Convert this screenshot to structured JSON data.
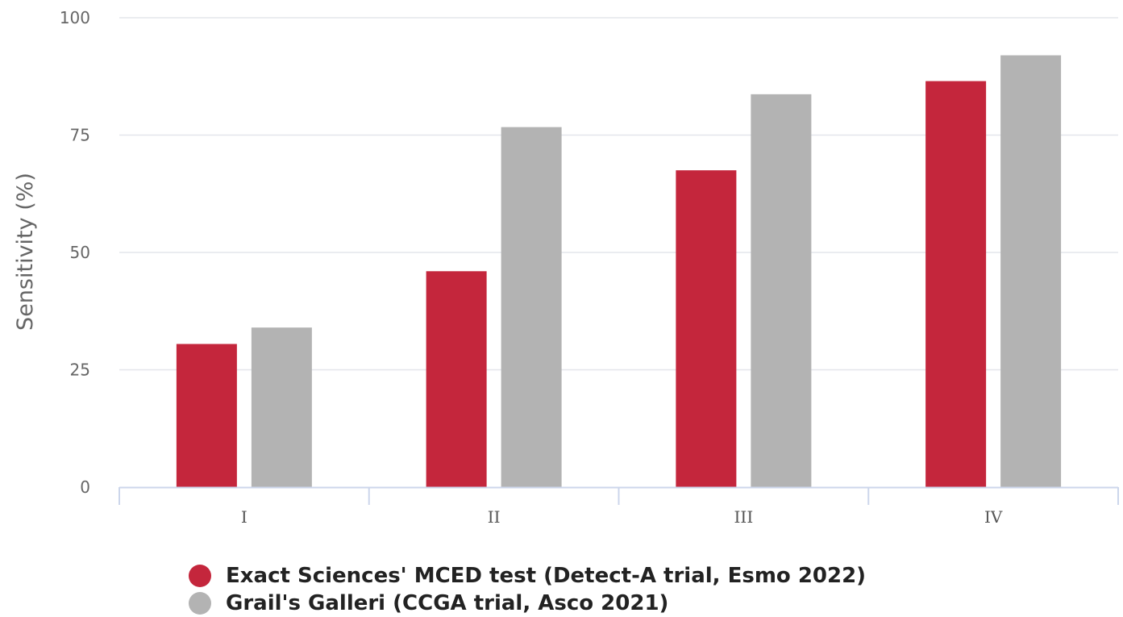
{
  "chart_data": {
    "type": "bar",
    "categories": [
      "I",
      "II",
      "III",
      "IV"
    ],
    "series": [
      {
        "name": "Exact Sciences' MCED test (Detect-A trial, Esmo 2022)",
        "values": [
          30.5,
          46,
          67.5,
          86.5
        ],
        "color": "#c4263c"
      },
      {
        "name": "Grail's Galleri (CCGA trial, Asco 2021)",
        "values": [
          34,
          76.7,
          83.7,
          92
        ],
        "color": "#b3b3b3"
      }
    ],
    "ylabel": "Sensitivity (%)",
    "xlabel": "",
    "ylim": [
      0,
      100
    ],
    "yticks": [
      0,
      25,
      50,
      75,
      100
    ],
    "grid": true,
    "legend_position": "bottom"
  }
}
